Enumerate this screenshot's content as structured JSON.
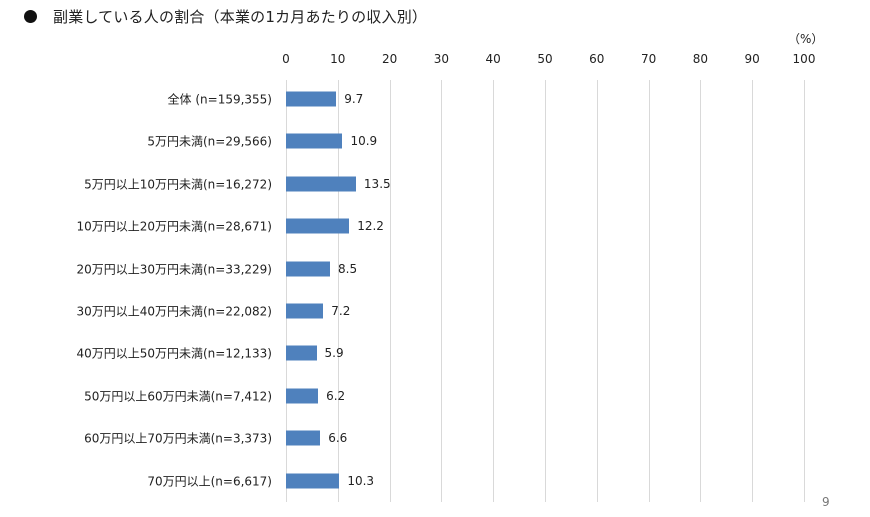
{
  "page": {
    "title": "副業している人の割合（本業の1カ月あたりの収入別）",
    "unit_label": "（%）",
    "page_number": "9"
  },
  "chart_data": {
    "type": "bar",
    "orientation": "horizontal",
    "title": "副業している人の割合（本業の1カ月あたりの収入別）",
    "xlabel": "（%）",
    "ylabel": "",
    "xlim": [
      0,
      100
    ],
    "x_ticks": [
      "0",
      "10",
      "20",
      "30",
      "40",
      "50",
      "60",
      "70",
      "80",
      "90",
      "100"
    ],
    "grid": true,
    "legend": null,
    "bar_color": "#4f81bd",
    "categories": [
      "全体 (n=159,355)",
      "5万円未満(n=29,566)",
      "5万円以上10万円未満(n=16,272)",
      "10万円以上20万円未満(n=28,671)",
      "20万円以上30万円未満(n=33,229)",
      "30万円以上40万円未満(n=22,082)",
      "40万円以上50万円未満(n=12,133)",
      "50万円以上60万円未満(n=7,412)",
      "60万円以上70万円未満(n=3,373)",
      "70万円以上(n=6,617)"
    ],
    "values": [
      9.7,
      10.9,
      13.5,
      12.2,
      8.5,
      7.2,
      5.9,
      6.2,
      6.6,
      10.3
    ],
    "value_labels": [
      "9.7",
      "10.9",
      "13.5",
      "12.2",
      "8.5",
      "7.2",
      "5.9",
      "6.2",
      "6.6",
      "10.3"
    ]
  }
}
